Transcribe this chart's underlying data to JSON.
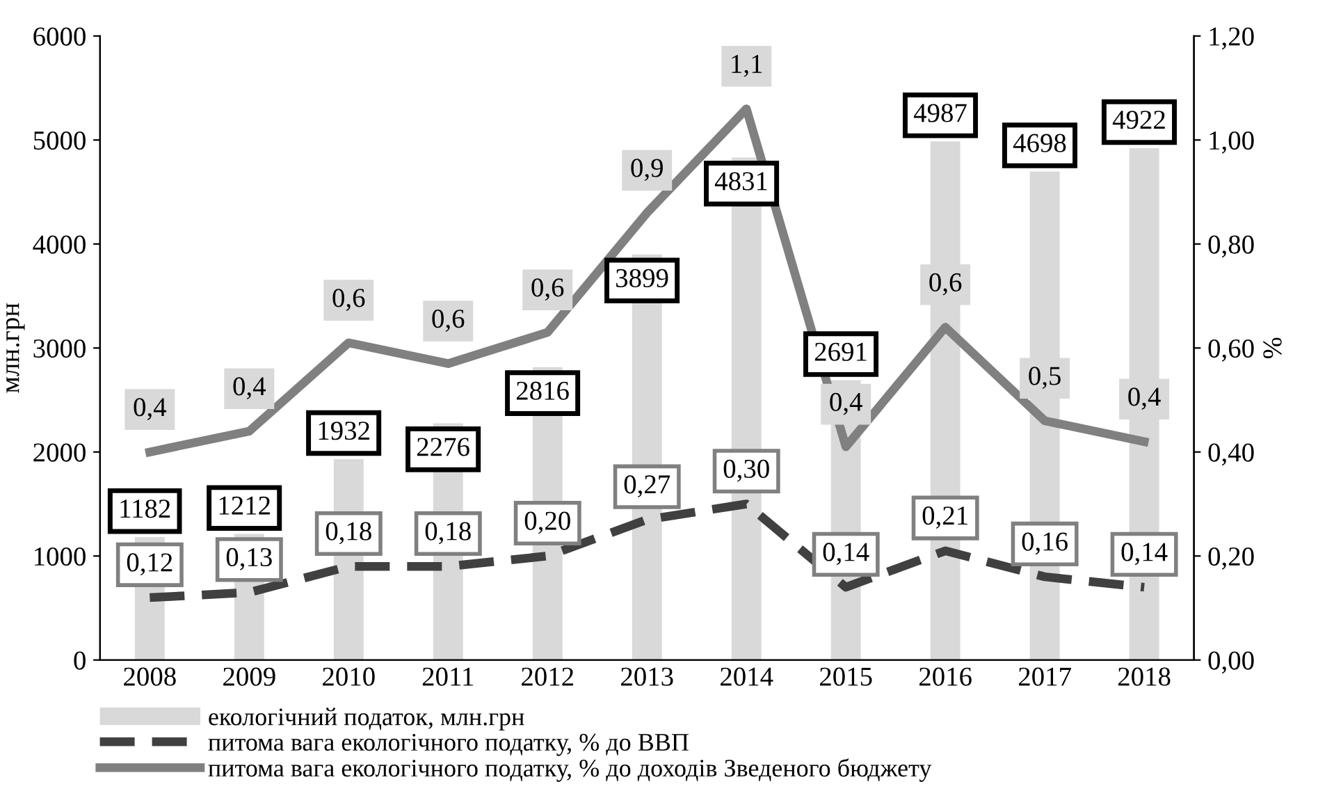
{
  "chart_data": {
    "type": "bar",
    "categories": [
      "2008",
      "2009",
      "2010",
      "2011",
      "2012",
      "2013",
      "2014",
      "2015",
      "2016",
      "2017",
      "2018"
    ],
    "ylabel": "млн.грн",
    "y2label": "%",
    "ylim": [
      0,
      6000
    ],
    "yticks": [
      0,
      1000,
      2000,
      3000,
      4000,
      5000,
      6000
    ],
    "y2lim": [
      0,
      1.2
    ],
    "y2ticks": [
      {
        "value": 0,
        "label": "0,00"
      },
      {
        "value": 0.2,
        "label": "0,20"
      },
      {
        "value": 0.4,
        "label": "0,40"
      },
      {
        "value": 0.6,
        "label": "0,60"
      },
      {
        "value": 0.8,
        "label": "0,80"
      },
      {
        "value": 1.0,
        "label": "1,00"
      },
      {
        "value": 1.2,
        "label": "1,20"
      }
    ],
    "legend": "bottom",
    "series": [
      {
        "name": "екологічний податок, млн.грн",
        "color": "#d9d9d9",
        "values": [
          1182,
          1212,
          1932,
          2276,
          2816,
          3899,
          4831,
          2691,
          4987,
          4698,
          4922
        ],
        "value_labels": [
          "1182",
          "1212",
          "1932",
          "2276",
          "2816",
          "3899",
          "4831",
          "2691",
          "4987",
          "4698",
          "4922"
        ]
      },
      {
        "name": "питома вага екологічного податку, % до ВВП",
        "type": "line",
        "axis": "y2",
        "line_style": "dashed",
        "color": "#404040",
        "values": [
          0.12,
          0.13,
          0.18,
          0.18,
          0.2,
          0.27,
          0.3,
          0.14,
          0.21,
          0.16,
          0.14
        ],
        "value_labels": [
          "0,12",
          "0,13",
          "0,18",
          "0,18",
          "0,20",
          "0,27",
          "0,30",
          "0,14",
          "0,21",
          "0,16",
          "0,14"
        ]
      },
      {
        "name": "питома вага екологічного податку, % до доходів Зведеного бюджету",
        "type": "line",
        "axis": "y2",
        "line_style": "solid",
        "color": "#808080",
        "values": [
          0.4,
          0.44,
          0.61,
          0.57,
          0.63,
          0.86,
          1.06,
          0.41,
          0.64,
          0.46,
          0.42
        ],
        "value_labels": [
          "0,4",
          "0,4",
          "0,6",
          "0,6",
          "0,6",
          "0,9",
          "1,1",
          "0,4",
          "0,6",
          "0,5",
          "0,4"
        ]
      }
    ]
  }
}
